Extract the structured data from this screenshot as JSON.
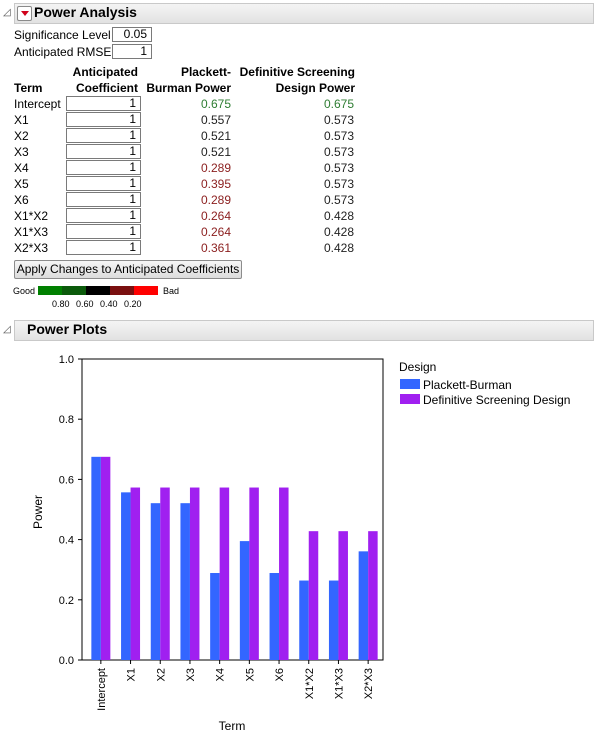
{
  "power_analysis": {
    "title": "Power Analysis",
    "significance_label": "Significance Level",
    "significance_value": "0.05",
    "rmse_label": "Anticipated RMSE",
    "rmse_value": "1",
    "headers": {
      "term": "Term",
      "coef_1": "Anticipated",
      "coef_2": "Coefficient",
      "pb_1": "Plackett-",
      "pb_2": "Burman Power",
      "dsd_1": "Definitive Screening",
      "dsd_2": "Design Power"
    },
    "rows": [
      {
        "term": "Intercept",
        "coef": "1",
        "pb": "0.675",
        "dsd": "0.675",
        "pb_color": "green",
        "dsd_color": "green"
      },
      {
        "term": "X1",
        "coef": "1",
        "pb": "0.557",
        "dsd": "0.573",
        "pb_color": "dark",
        "dsd_color": "dark"
      },
      {
        "term": "X2",
        "coef": "1",
        "pb": "0.521",
        "dsd": "0.573",
        "pb_color": "dark",
        "dsd_color": "dark"
      },
      {
        "term": "X3",
        "coef": "1",
        "pb": "0.521",
        "dsd": "0.573",
        "pb_color": "dark",
        "dsd_color": "dark"
      },
      {
        "term": "X4",
        "coef": "1",
        "pb": "0.289",
        "dsd": "0.573",
        "pb_color": "red",
        "dsd_color": "dark"
      },
      {
        "term": "X5",
        "coef": "1",
        "pb": "0.395",
        "dsd": "0.573",
        "pb_color": "red",
        "dsd_color": "dark"
      },
      {
        "term": "X6",
        "coef": "1",
        "pb": "0.289",
        "dsd": "0.573",
        "pb_color": "red",
        "dsd_color": "dark"
      },
      {
        "term": "X1*X2",
        "coef": "1",
        "pb": "0.264",
        "dsd": "0.428",
        "pb_color": "red",
        "dsd_color": "dark"
      },
      {
        "term": "X1*X3",
        "coef": "1",
        "pb": "0.264",
        "dsd": "0.428",
        "pb_color": "red",
        "dsd_color": "dark"
      },
      {
        "term": "X2*X3",
        "coef": "1",
        "pb": "0.361",
        "dsd": "0.428",
        "pb_color": "red",
        "dsd_color": "dark"
      }
    ],
    "apply_button": "Apply Changes to Anticipated Coefficients",
    "color_scale": {
      "good_label": "Good",
      "bad_label": "Bad",
      "ticks": [
        "0.80",
        "0.60",
        "0.40",
        "0.20"
      ],
      "colors": [
        "#008000",
        "#0b5a0b",
        "#000000",
        "#7a1010",
        "#ff0000"
      ]
    }
  },
  "power_plots": {
    "title": "Power Plots"
  },
  "chart_data": {
    "type": "bar",
    "xlabel": "Term",
    "ylabel": "Power",
    "ylim": [
      0,
      1
    ],
    "yticks": [
      "0.0",
      "0.2",
      "0.4",
      "0.6",
      "0.8",
      "1.0"
    ],
    "categories": [
      "Intercept",
      "X1",
      "X2",
      "X3",
      "X4",
      "X5",
      "X6",
      "X1*X2",
      "X1*X3",
      "X2*X3"
    ],
    "series": [
      {
        "name": "Plackett-Burman",
        "color": "#3366ff",
        "values": [
          0.675,
          0.557,
          0.521,
          0.521,
          0.289,
          0.395,
          0.289,
          0.264,
          0.264,
          0.361
        ]
      },
      {
        "name": "Definitive Screening Design",
        "color": "#a020f0",
        "values": [
          0.675,
          0.573,
          0.573,
          0.573,
          0.573,
          0.573,
          0.573,
          0.428,
          0.428,
          0.428
        ]
      }
    ],
    "legend_title": "Design",
    "legend_position": "right"
  }
}
